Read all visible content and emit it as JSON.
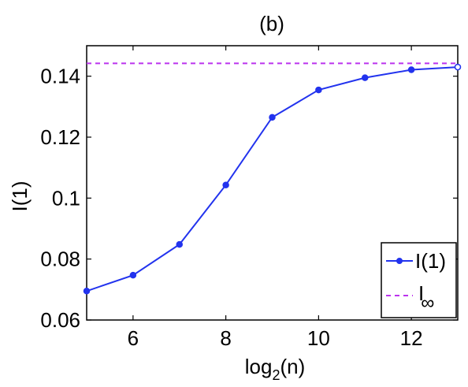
{
  "chart_data": {
    "type": "line",
    "title": "(b)",
    "xlabel_base": "log",
    "xlabel_sub": "2",
    "xlabel_tail": "(n)",
    "ylabel": "I(1)",
    "xlim": [
      5,
      13
    ],
    "ylim": [
      0.06,
      0.15
    ],
    "x_ticks": [
      6,
      8,
      10,
      12
    ],
    "x_tick_labels": [
      "6",
      "8",
      "10",
      "12"
    ],
    "y_ticks": [
      0.06,
      0.08,
      0.1,
      0.12,
      0.14
    ],
    "y_tick_labels": [
      "0.06",
      "0.08",
      "0.1",
      "0.12",
      "0.14"
    ],
    "grid": false,
    "legend_position": "bottom-right",
    "series": [
      {
        "name": "I(1)",
        "style": "solid-with-markers",
        "color": "#2233ee",
        "x": [
          5,
          6,
          7,
          8,
          9,
          10,
          11,
          12,
          13
        ],
        "y": [
          0.0695,
          0.0747,
          0.0848,
          0.1043,
          0.1265,
          0.1355,
          0.1395,
          0.1421,
          0.143
        ]
      },
      {
        "legend_base": "I",
        "legend_sub": "∞",
        "style": "dashed",
        "color": "#bb33ee",
        "x": [
          5,
          13
        ],
        "y": [
          0.1442,
          0.1442
        ]
      }
    ]
  }
}
